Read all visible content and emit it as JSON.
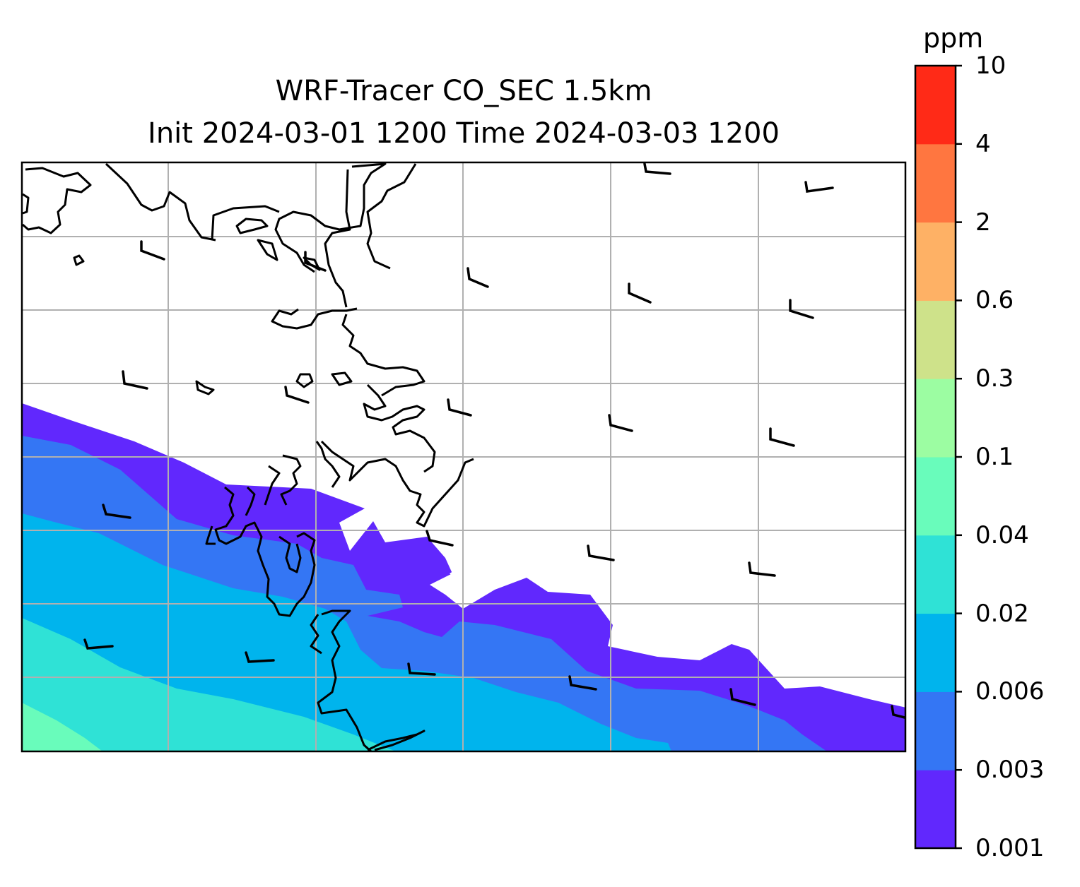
{
  "title": {
    "line1": "WRF-Tracer CO_SEC 1.5km",
    "line2": "Init 2024-03-01 1200 Time 2024-03-03 1200"
  },
  "colorbar": {
    "unit": "ppm",
    "levels": [
      "0.001",
      "0.003",
      "0.006",
      "0.02",
      "0.04",
      "0.1",
      "0.3",
      "0.6",
      "2",
      "4",
      "10"
    ],
    "colors": [
      "#6128fd",
      "#3476f4",
      "#00b4ed",
      "#2fe2d6",
      "#69fcbb",
      "#9cfda2",
      "#cee28a",
      "#feb165",
      "#ff7640",
      "#ff2a17"
    ]
  },
  "map": {
    "grid": true,
    "wind_barbs": true
  }
}
